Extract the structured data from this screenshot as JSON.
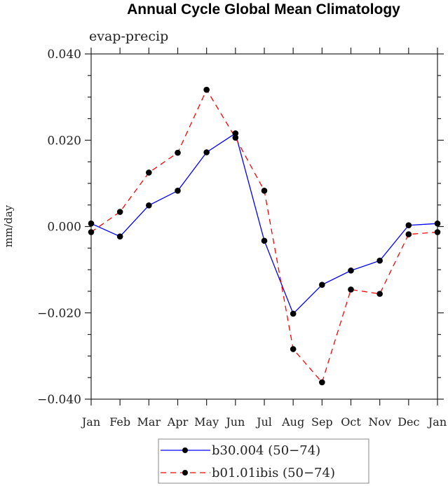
{
  "chart_data": {
    "type": "line",
    "title": "Annual Cycle Global Mean Climatology",
    "subtitle": "evap-precip",
    "xlabel": "",
    "ylabel": "mm/day",
    "categories": [
      "Jan",
      "Feb",
      "Mar",
      "Apr",
      "May",
      "Jun",
      "Jul",
      "Aug",
      "Sep",
      "Oct",
      "Nov",
      "Dec",
      "Jan"
    ],
    "ylim": [
      -0.04,
      0.04
    ],
    "yticks": [
      -0.04,
      -0.02,
      0.0,
      0.02,
      0.04
    ],
    "ytick_labels": [
      "−0.040",
      "−0.020",
      "0.000",
      "0.020",
      "0.040"
    ],
    "yminor_step": 0.005,
    "grid": false,
    "legend_position": "bottom-center",
    "series": [
      {
        "name": "b30.004 (50−74)",
        "color": "#0000ff",
        "style": "solid",
        "marker": "filled-circle",
        "values": [
          0.0007,
          -0.0023,
          0.0049,
          0.0083,
          0.0172,
          0.0216,
          -0.0033,
          -0.0202,
          -0.0135,
          -0.0102,
          -0.0079,
          0.0003,
          0.0007
        ]
      },
      {
        "name": "b01.01ibis (50−74)",
        "color": "#ff0000",
        "style": "dashed",
        "marker": "filled-circle",
        "values": [
          -0.0013,
          0.0034,
          0.0125,
          0.0171,
          0.0317,
          0.0206,
          0.0083,
          -0.0284,
          -0.0361,
          -0.0146,
          -0.0156,
          -0.0018,
          -0.0013
        ]
      }
    ]
  }
}
